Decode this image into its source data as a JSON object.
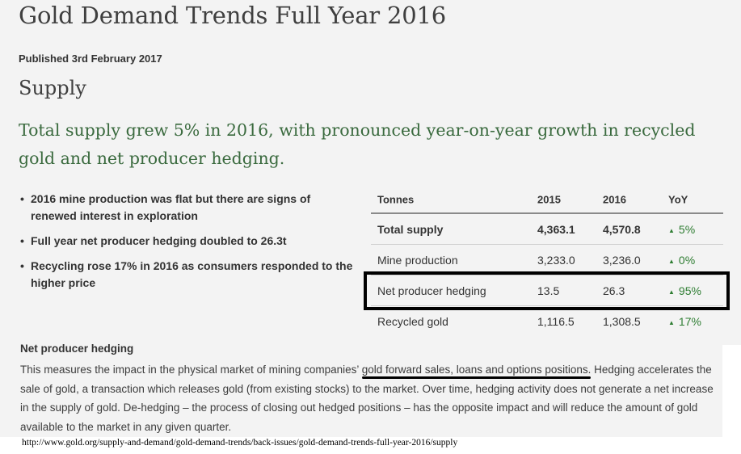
{
  "page": {
    "title": "Gold Demand Trends Full Year 2016",
    "published": "Published 3rd February 2017",
    "section_heading": "Supply",
    "headline": "Total supply grew 5% in 2016, with pronounced year-on-year growth in recycled gold and net producer hedging."
  },
  "bullets": [
    "2016 mine production was flat but there are signs of renewed interest in exploration",
    "Full year net producer hedging doubled to 26.3t",
    "Recycling rose 17% in 2016 as consumers responded to the higher price"
  ],
  "table": {
    "headers": [
      "Tonnes",
      "2015",
      "2016",
      "YoY"
    ],
    "rows": [
      {
        "label": "Total supply",
        "y2015": "4,363.1",
        "y2016": "4,570.8",
        "yoy": "5%"
      },
      {
        "label": "Mine production",
        "y2015": "3,233.0",
        "y2016": "3,236.0",
        "yoy": "0%"
      },
      {
        "label": "Net producer hedging",
        "y2015": "13.5",
        "y2016": "26.3",
        "yoy": "95%"
      },
      {
        "label": "Recycled gold",
        "y2015": "1,116.5",
        "y2016": "1,308.5",
        "yoy": "17%"
      }
    ],
    "arrow_glyph": "▲",
    "up_color": "#2e7d32"
  },
  "definition": {
    "title": "Net producer hedging",
    "text_1": "This measures the impact in the physical market of mining companies’ ",
    "underlined_1": "gold forward sales, loans and options positions.",
    "text_2": " Hedging ",
    "underlined_2": "accelerates the sale of gold",
    "text_3": ", a transaction which releases gold (from existing stocks) to the market. Over time, hedging activity does not generate a net increase in the supply of gold. De-hedging – the process of closing out hedged positions – has the opposite impact and will reduce the amount of gold available to the market in any given quarter."
  },
  "source_url": "http://www.gold.org/supply-and-demand/gold-demand-trends/back-issues/gold-demand-trends-full-year-2016/supply",
  "colors": {
    "panel_bg": "#f3f3f3",
    "headline_green": "#3a6a3e",
    "highlight_border": "#000000"
  }
}
